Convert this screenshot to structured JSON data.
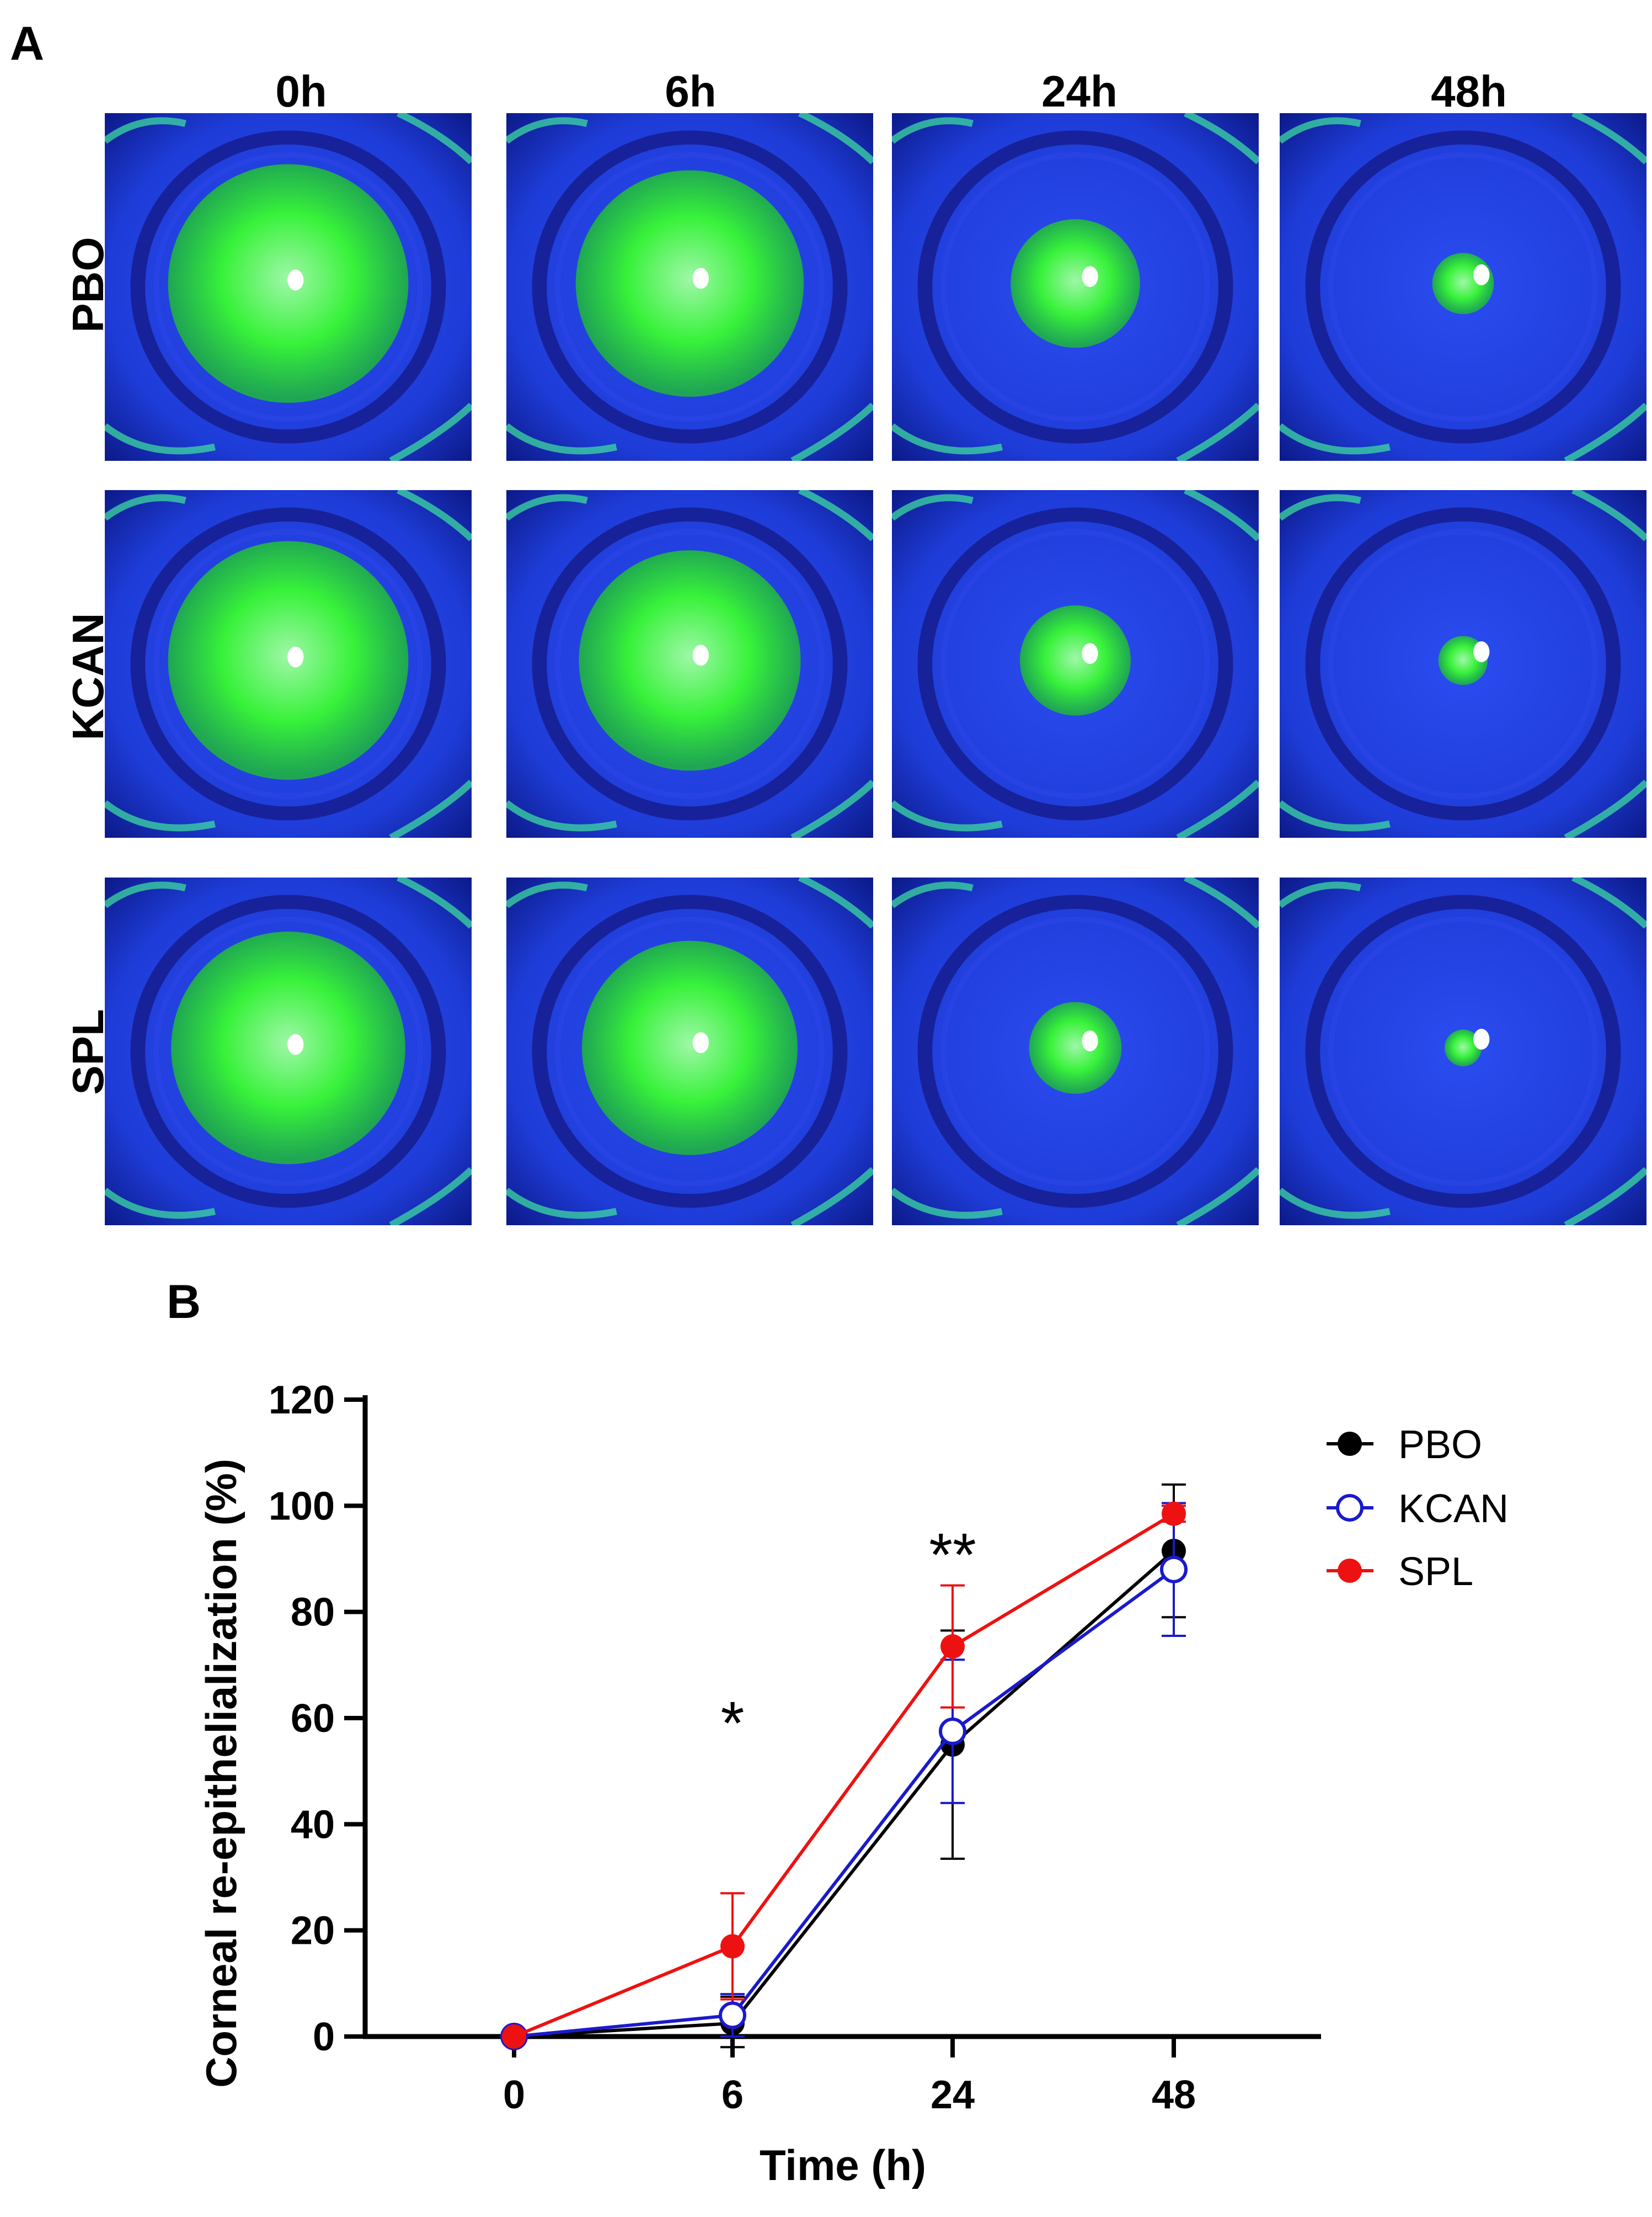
{
  "figure": {
    "panel_a_label": "A",
    "panel_b_label": "B",
    "columns": [
      "0h",
      "6h",
      "24h",
      "48h"
    ],
    "rows": [
      "PBO",
      "KCAN",
      "SPL"
    ],
    "colors": {
      "eye_background": "#1e3cd8",
      "eye_ring": "#17219a",
      "fluorescein": "#38f23a",
      "pbo": "#000000",
      "kcan": "#1a1acc",
      "spl": "#ee1111"
    },
    "stain_fraction": {
      "PBO": [
        0.78,
        0.74,
        0.42,
        0.2
      ],
      "KCAN": [
        0.78,
        0.72,
        0.36,
        0.16
      ],
      "SPL": [
        0.76,
        0.7,
        0.3,
        0.12
      ]
    }
  },
  "chart_data": {
    "type": "line",
    "title": "",
    "xlabel": "Time (h)",
    "ylabel": "Corneal re-epithelialization (%)",
    "categories": [
      "0",
      "6",
      "24",
      "48"
    ],
    "ylim": [
      0,
      120
    ],
    "yticks": [
      "0",
      "20",
      "40",
      "60",
      "80",
      "100",
      "120"
    ],
    "reference_line": 0,
    "series": [
      {
        "name": "PBO",
        "color": "#000000",
        "marker": "filled",
        "values": [
          0,
          2.5,
          55,
          91.5
        ],
        "error": [
          0,
          5,
          21.5,
          12.5
        ]
      },
      {
        "name": "KCAN",
        "color": "#1a1acc",
        "marker": "open",
        "values": [
          0,
          4,
          57.5,
          88
        ],
        "error": [
          0,
          4,
          13.5,
          12.5
        ]
      },
      {
        "name": "SPL",
        "color": "#ee1111",
        "marker": "filled",
        "values": [
          0,
          17,
          73.5,
          98.5
        ],
        "error": [
          0,
          10,
          11.5,
          1.5
        ]
      }
    ],
    "annotations": [
      {
        "category": "6",
        "text": "*"
      },
      {
        "category": "24",
        "text": "**"
      }
    ],
    "legend_position": "top-right"
  }
}
